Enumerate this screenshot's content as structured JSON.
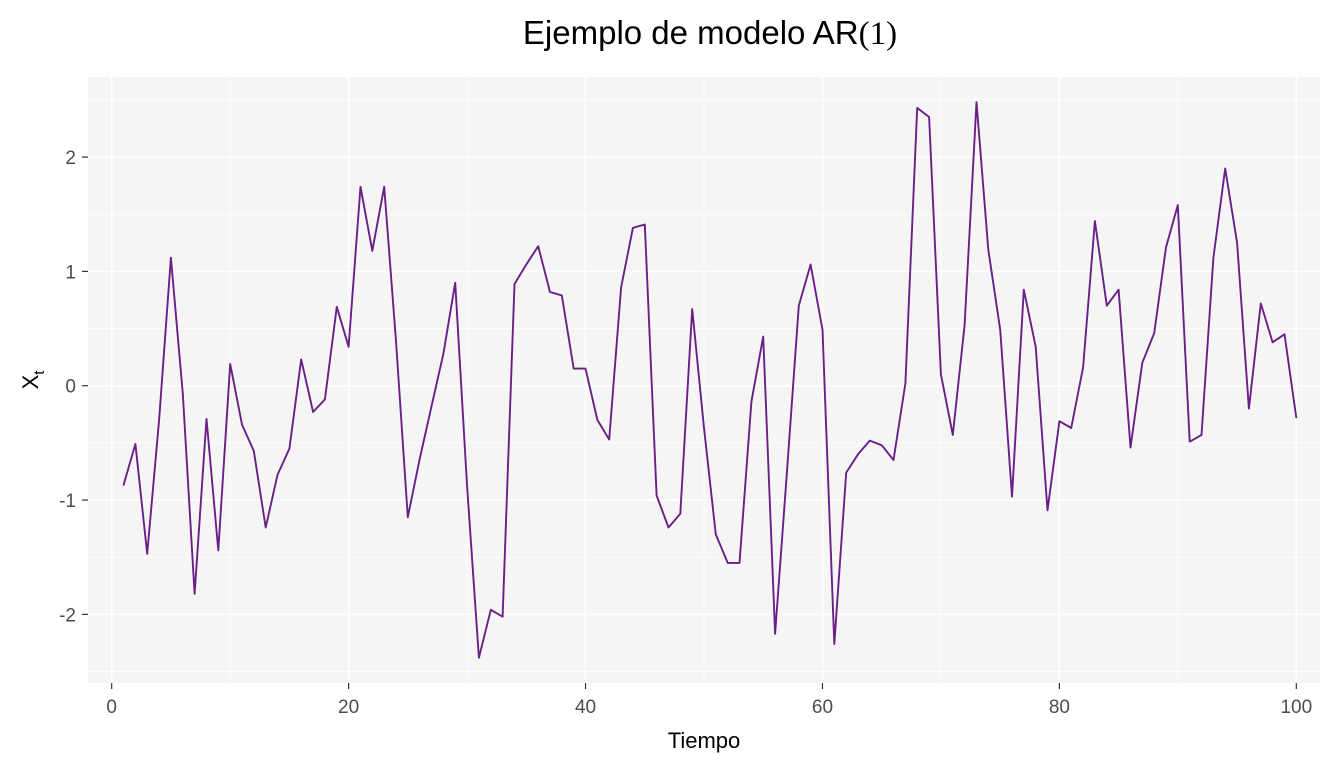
{
  "chart_data": {
    "type": "line",
    "title": "Ejemplo de modelo AR",
    "title_suffix": "(1)",
    "xlabel": "Tiempo",
    "ylabel_main": "X",
    "ylabel_sub": "t",
    "xlim": [
      -2,
      102
    ],
    "ylim": [
      -2.6,
      2.7
    ],
    "x_ticks": [
      0,
      20,
      40,
      60,
      80,
      100
    ],
    "y_ticks": [
      -2,
      -1,
      0,
      1,
      2
    ],
    "y_tick_labels": [
      "-2",
      "-1",
      "0",
      "1",
      "2"
    ],
    "grid": true,
    "panel_color": "#f5f5f5",
    "grid_color": "#ffffff",
    "line_color": "#6a1f86",
    "series": [
      {
        "x": [
          1,
          2,
          3,
          4,
          5,
          6,
          7,
          8,
          9,
          10,
          11,
          12,
          13,
          14,
          15,
          16,
          17,
          18,
          19,
          20,
          21,
          22,
          23,
          24,
          25,
          26,
          27,
          28,
          29,
          30,
          31,
          32,
          33,
          34,
          35,
          36,
          37,
          38,
          39,
          40,
          41,
          42,
          43,
          44,
          45,
          46,
          47,
          48,
          49,
          50,
          51,
          52,
          53,
          54,
          55,
          56,
          57,
          58,
          59,
          60,
          61,
          62,
          63,
          64,
          65,
          66,
          67,
          68,
          69,
          70,
          71,
          72,
          73,
          74,
          75,
          76,
          77,
          78,
          79,
          80,
          81,
          82,
          83,
          84,
          85,
          86,
          87,
          88,
          89,
          90,
          91,
          92,
          93,
          94,
          95,
          96,
          97,
          98,
          99,
          100
        ],
        "values": [
          -0.87,
          -0.51,
          -1.47,
          -0.3,
          1.12,
          -0.07,
          -1.82,
          -0.29,
          -1.44,
          0.19,
          -0.34,
          -0.57,
          -1.24,
          -0.78,
          -0.55,
          0.23,
          -0.23,
          -0.12,
          0.69,
          0.34,
          1.74,
          1.18,
          1.74,
          0.39,
          -1.15,
          -0.64,
          -0.18,
          0.28,
          0.9,
          -0.88,
          -2.38,
          -1.96,
          -2.02,
          0.89,
          1.06,
          1.22,
          0.82,
          0.79,
          0.15,
          0.15,
          -0.3,
          -0.47,
          0.86,
          1.38,
          1.41,
          -0.96,
          -1.24,
          -1.12,
          0.67,
          -0.37,
          -1.3,
          -1.55,
          -1.55,
          -0.14,
          0.43,
          -2.17,
          -0.76,
          0.7,
          1.06,
          0.49,
          -2.26,
          -0.76,
          -0.6,
          -0.48,
          -0.52,
          -0.65,
          0.02,
          2.43,
          2.35,
          0.1,
          -0.43,
          0.53,
          2.48,
          1.19,
          0.49,
          -0.97,
          0.84,
          0.34,
          -1.09,
          -0.31,
          -0.37,
          0.16,
          1.44,
          0.7,
          0.84,
          -0.54,
          0.2,
          0.46,
          1.21,
          1.58,
          -0.49,
          -0.43,
          1.12,
          1.9,
          1.25,
          -0.2,
          0.72,
          0.38,
          0.45,
          -0.28
        ]
      }
    ]
  }
}
